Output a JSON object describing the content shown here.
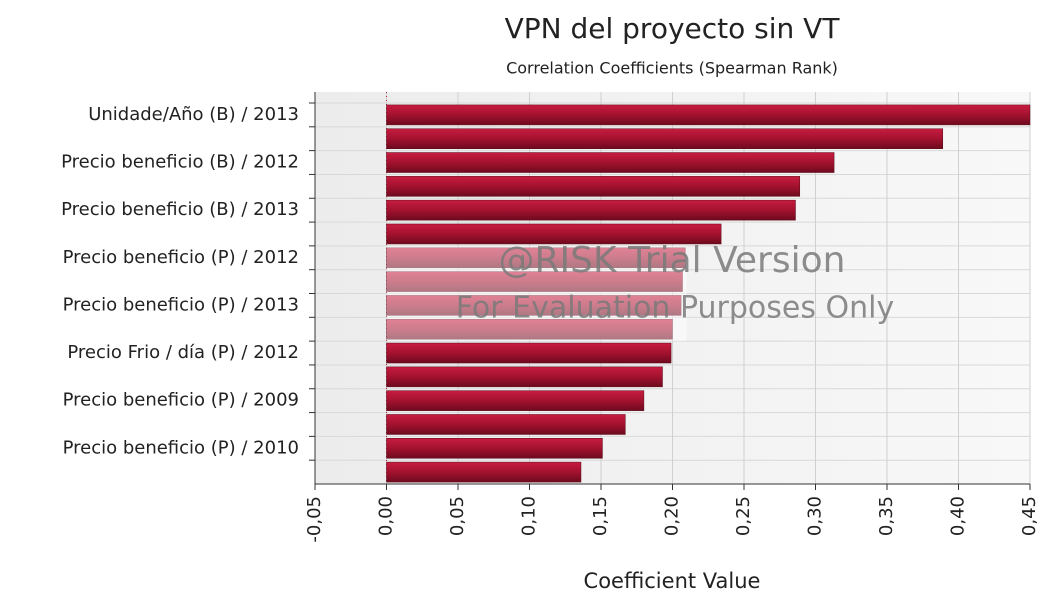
{
  "chart_data": {
    "type": "bar",
    "orientation": "horizontal",
    "title": "VPN del proyecto sin VT",
    "subtitle": "Correlation Coefficients (Spearman Rank)",
    "x_label": "Coefficient Value",
    "watermark": [
      "@RISK Trial Version",
      "For Evaluation Purposes Only"
    ],
    "categories": [
      "Unidade/Año (B) / 2013",
      null,
      "Precio beneficio (B) / 2012",
      null,
      "Precio beneficio (B) / 2013",
      null,
      "Precio beneficio (P) / 2012",
      null,
      "Precio beneficio (P) / 2013",
      null,
      "Precio Frio / día (P) / 2012",
      null,
      "Precio beneficio (P) / 2009",
      null,
      "Precio beneficio (P) / 2010",
      null
    ],
    "values": [
      0.45,
      0.389,
      0.313,
      0.289,
      0.286,
      0.234,
      0.209,
      0.207,
      0.206,
      0.2,
      0.199,
      0.193,
      0.18,
      0.167,
      0.151,
      0.136
    ],
    "color": "#a3122f",
    "xlim": [
      -0.05,
      0.45
    ],
    "xticks": [
      {
        "value": -0.05,
        "label": "-0,05"
      },
      {
        "value": 0,
        "label": "0,00"
      },
      {
        "value": 0.05,
        "label": "0,05"
      },
      {
        "value": 0.1,
        "label": "0,10"
      },
      {
        "value": 0.15,
        "label": "0,15"
      },
      {
        "value": 0.2,
        "label": "0,20"
      },
      {
        "value": 0.25,
        "label": "0,25"
      },
      {
        "value": 0.3,
        "label": "0,30"
      },
      {
        "value": 0.35,
        "label": "0,35"
      },
      {
        "value": 0.4,
        "label": "0,40"
      },
      {
        "value": 0.45,
        "label": "0,45"
      }
    ],
    "grid": true
  }
}
